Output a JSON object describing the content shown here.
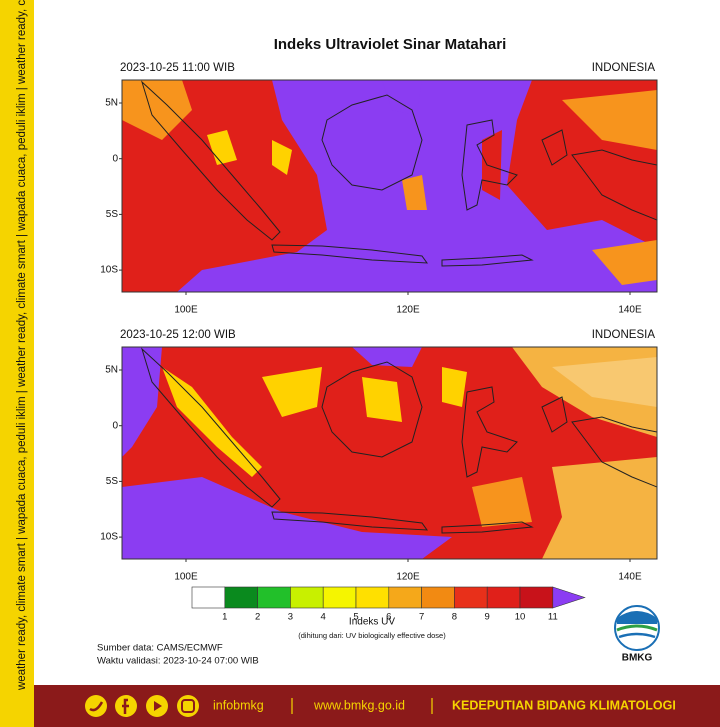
{
  "title": "Indeks Ultraviolet Sinar Matahari",
  "panels": [
    {
      "time": "2023-10-25  11:00 WIB",
      "region": "INDONESIA"
    },
    {
      "time": "2023-10-25  12:00 WIB",
      "region": "INDONESIA"
    }
  ],
  "lat_labels": [
    "5N",
    "0",
    "5S",
    "10S"
  ],
  "lon_labels": [
    "100E",
    "120E",
    "140E"
  ],
  "colorbar": {
    "ticks": [
      1,
      2,
      3,
      4,
      5,
      6,
      7,
      8,
      9,
      10,
      11
    ],
    "label": "Indeks UV",
    "note": "(dihitung dari: UV biologically effective dose)"
  },
  "source": "Sumber data: CAMS/ECMWF",
  "validity": "Waktu validasi: 2023-10-24 07:00 WIB",
  "logo": "BMKG",
  "sidebar": "weather ready, climate smart | wapada cuaca, peduli iklim | weather ready, climate smart | wapada cuaca, peduli iklim | weather ready, climate smart | wapada cuaca, peduli iklim",
  "footer": {
    "handle": "infobmkg",
    "website": "www.bmkg.go.id",
    "department": "KEDEPUTIAN BIDANG KLIMATOLOGI"
  }
}
